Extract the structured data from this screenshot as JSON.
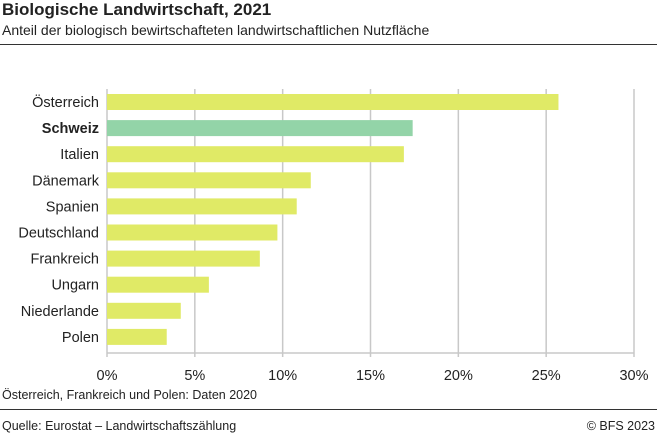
{
  "chart_data": {
    "type": "bar",
    "orientation": "horizontal",
    "title": "Biologische Landwirtschaft, 2021",
    "subtitle": "Anteil der biologisch bewirtschafteten landwirtschaftlichen Nutzfläche",
    "categories": [
      "Österreich",
      "Schweiz",
      "Italien",
      "Dänemark",
      "Spanien",
      "Deutschland",
      "Frankreich",
      "Ungarn",
      "Niederlande",
      "Polen"
    ],
    "values": [
      25.7,
      17.4,
      16.9,
      11.6,
      10.8,
      9.7,
      8.7,
      5.8,
      4.2,
      3.4
    ],
    "highlight": "Schweiz",
    "colors": {
      "default": "#e0ea66",
      "highlight": "#93d4a8",
      "grid": "#c8c8c8"
    },
    "xlim": [
      0,
      30
    ],
    "xticks": [
      0,
      5,
      10,
      15,
      20,
      25,
      30
    ],
    "xtick_labels": [
      "0%",
      "5%",
      "10%",
      "15%",
      "20%",
      "25%",
      "30%"
    ],
    "grid": true,
    "note": "Österreich, Frankreich und Polen: Daten 2020"
  },
  "footer": {
    "source": "Quelle: Eurostat –  Landwirtschaftszählung",
    "copyright": "© BFS 2023"
  }
}
